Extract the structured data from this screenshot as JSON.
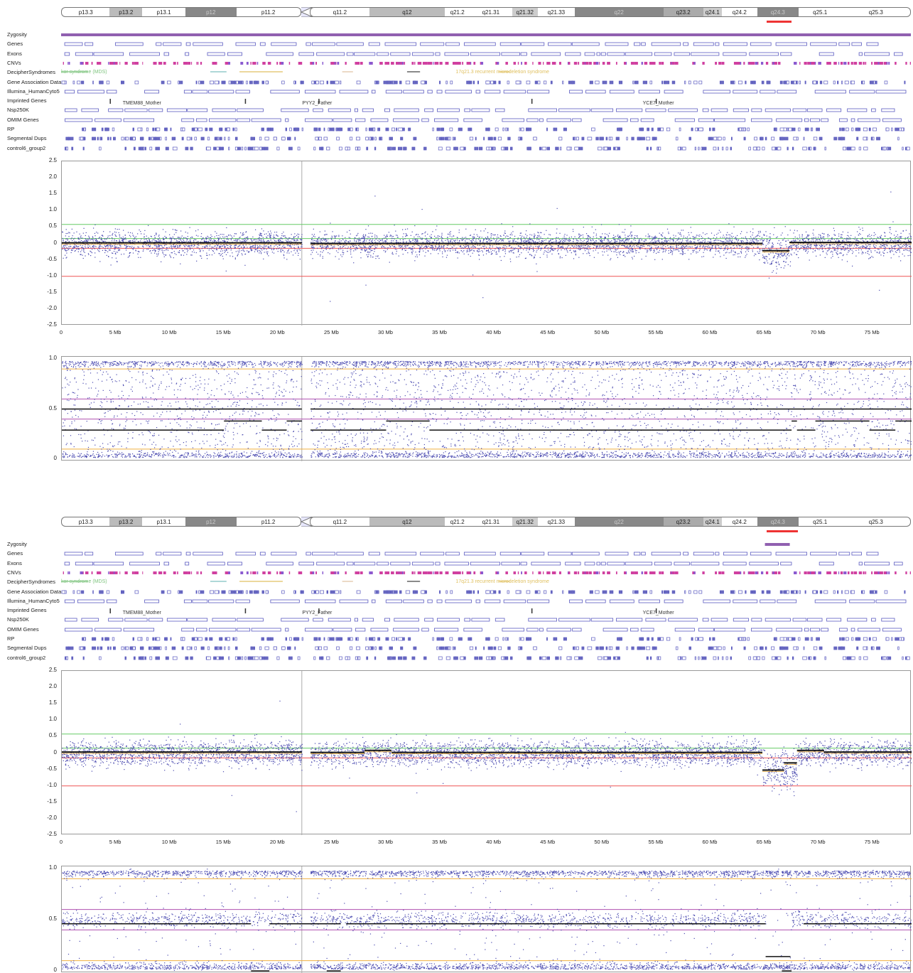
{
  "bands": [
    {
      "label": "p13.3",
      "start": 0,
      "end": 4.5,
      "shade": "#ffffff"
    },
    {
      "label": "p13.2",
      "start": 4.5,
      "end": 7.5,
      "shade": "#bbbbbb"
    },
    {
      "label": "p13.1",
      "start": 7.5,
      "end": 11.5,
      "shade": "#ffffff"
    },
    {
      "label": "p12",
      "start": 11.5,
      "end": 16.2,
      "shade": "#888888"
    },
    {
      "label": "p11.2",
      "start": 16.2,
      "end": 22.2,
      "shade": "#ffffff"
    },
    {
      "label": "q11.2",
      "start": 23.0,
      "end": 28.5,
      "shade": "#ffffff"
    },
    {
      "label": "q12",
      "start": 28.5,
      "end": 35.5,
      "shade": "#bbbbbb"
    },
    {
      "label": "q21.2",
      "start": 35.5,
      "end": 37.8,
      "shade": "#ffffff"
    },
    {
      "label": "q21.31",
      "start": 37.8,
      "end": 41.7,
      "shade": "#ffffff"
    },
    {
      "label": "q21.32",
      "start": 41.7,
      "end": 44.1,
      "shade": "#cccccc"
    },
    {
      "label": "q21.33",
      "start": 44.1,
      "end": 47.5,
      "shade": "#ffffff"
    },
    {
      "label": "q22",
      "start": 47.5,
      "end": 55.7,
      "shade": "#888888"
    },
    {
      "label": "q23.2",
      "start": 55.7,
      "end": 59.4,
      "shade": "#aaaaaa"
    },
    {
      "label": "q24.1",
      "start": 59.4,
      "end": 61.1,
      "shade": "#cccccc"
    },
    {
      "label": "q24.2",
      "start": 61.1,
      "end": 64.4,
      "shade": "#ffffff"
    },
    {
      "label": "q24.3",
      "start": 64.4,
      "end": 68.2,
      "shade": "#888888"
    },
    {
      "label": "q25.1",
      "start": 68.2,
      "end": 72.2,
      "shade": "#ffffff"
    },
    {
      "label": "q25.3",
      "start": 72.2,
      "end": 78.6,
      "shade": "#ffffff"
    }
  ],
  "tracks": [
    "Zygosity",
    "Genes",
    "Exons",
    "CNVs",
    "DecipherSyndromes",
    "Gene Association Data",
    "Illumina_HumanCyto5",
    "Imprinted Genes",
    "Nsp250K",
    "OMIM Genes",
    "RP",
    "Segmental Dups",
    "control6_group2"
  ],
  "annotations": {
    "decipher_1": "kor syndrome (MDS)",
    "decipher_2": "17q21.3 recurrent microdeletion syndrome",
    "imprinted_1": "TMEM88_Mother",
    "imprinted_2": "PYY2_Father",
    "imprinted_3": "YCE7_Mother"
  },
  "chart_data": [
    {
      "type": "scatter",
      "name_hint": "panel-1-log2-ratio",
      "x_ticks": [
        "0",
        "5 Mb",
        "10 Mb",
        "15 Mb",
        "20 Mb",
        "25 Mb",
        "30 Mb",
        "35 Mb",
        "40 Mb",
        "45 Mb",
        "50 Mb",
        "55 Mb",
        "60 Mb",
        "65 Mb",
        "70 Mb",
        "75 Mb"
      ],
      "y_ticks": [
        "2.5",
        "2.0",
        "1.5",
        "1.0",
        "0.5",
        "0",
        "-0.5",
        "-1.0",
        "-1.5",
        "-2.0",
        "-2.5"
      ],
      "xlim": [
        0,
        78.6
      ],
      "ylim": [
        -2.5,
        2.5
      ],
      "thresholds": [
        {
          "y": 0.58,
          "color": "#6c6"
        },
        {
          "y": 0.15,
          "color": "#6c6"
        },
        {
          "y": -0.15,
          "color": "#e55"
        },
        {
          "y": -1.0,
          "color": "#e55"
        }
      ],
      "segments": [
        {
          "x0": 0,
          "x1": 22.2,
          "y": 0.02
        },
        {
          "x0": 23.0,
          "x1": 64.8,
          "y": 0.0
        },
        {
          "x0": 64.8,
          "x1": 67.3,
          "y": -0.22
        },
        {
          "x0": 67.3,
          "x1": 78.6,
          "y": 0.03
        }
      ],
      "deletion_region": [
        64.8,
        67.3
      ],
      "deletion_mean": -0.22
    },
    {
      "type": "scatter",
      "name_hint": "panel-1-b-allele-frequency",
      "y_ticks": [
        "1.0",
        "0.5",
        "0"
      ],
      "xlim": [
        0,
        78.6
      ],
      "ylim": [
        0,
        1
      ],
      "thresholds": [
        {
          "y": 0.9,
          "color": "#f0b040"
        },
        {
          "y": 0.6,
          "color": "#b050b0"
        },
        {
          "y": 0.4,
          "color": "#b050b0"
        },
        {
          "y": 0.1,
          "color": "#f0b040"
        }
      ],
      "segments": [
        {
          "x0": 0,
          "x1": 22.2,
          "y": 0.5
        },
        {
          "x0": 23.0,
          "x1": 78.6,
          "y": 0.5
        },
        {
          "x0": 0,
          "x1": 15,
          "y": 0.29
        },
        {
          "x0": 15,
          "x1": 18.5,
          "y": 0.38
        },
        {
          "x0": 18.5,
          "x1": 20.8,
          "y": 0.29
        },
        {
          "x0": 20.8,
          "x1": 22.2,
          "y": 0.38
        },
        {
          "x0": 23.0,
          "x1": 30,
          "y": 0.29
        },
        {
          "x0": 30,
          "x1": 34,
          "y": 0.38
        },
        {
          "x0": 34,
          "x1": 67.5,
          "y": 0.29
        },
        {
          "x0": 67.5,
          "x1": 68.0,
          "y": 0.38
        },
        {
          "x0": 68.0,
          "x1": 69.7,
          "y": 0.29
        },
        {
          "x0": 69.7,
          "x1": 74.7,
          "y": 0.38
        },
        {
          "x0": 74.7,
          "x1": 77.1,
          "y": 0.29
        },
        {
          "x0": 77.1,
          "x1": 78.6,
          "y": 0.38
        }
      ],
      "deletion_region": [
        64.8,
        67.3
      ]
    },
    {
      "type": "scatter",
      "name_hint": "panel-2-log2-ratio",
      "x_ticks": [
        "0",
        "5 Mb",
        "10 Mb",
        "15 Mb",
        "20 Mb",
        "25 Mb",
        "30 Mb",
        "35 Mb",
        "40 Mb",
        "45 Mb",
        "50 Mb",
        "55 Mb",
        "60 Mb",
        "65 Mb",
        "70 Mb",
        "75 Mb"
      ],
      "y_ticks": [
        "2.5",
        "2.0",
        "1.5",
        "1.0",
        "0.5",
        "0",
        "-0.5",
        "-1.0",
        "-1.5",
        "-2.0",
        "-2.5"
      ],
      "xlim": [
        0,
        78.6
      ],
      "ylim": [
        -2.5,
        2.5
      ],
      "thresholds": [
        {
          "y": 0.58,
          "color": "#6c6"
        },
        {
          "y": 0.15,
          "color": "#6c6"
        },
        {
          "y": -0.15,
          "color": "#e55"
        },
        {
          "y": -1.0,
          "color": "#e55"
        }
      ],
      "segments": [
        {
          "x0": 0,
          "x1": 22.2,
          "y": 0.03
        },
        {
          "x0": 23.0,
          "x1": 28,
          "y": 0.02
        },
        {
          "x0": 28,
          "x1": 30.5,
          "y": 0.08
        },
        {
          "x0": 30.5,
          "x1": 64.8,
          "y": 0.02
        },
        {
          "x0": 64.8,
          "x1": 66.8,
          "y": -0.52
        },
        {
          "x0": 66.8,
          "x1": 68.0,
          "y": -0.3
        },
        {
          "x0": 68.0,
          "x1": 70.5,
          "y": 0.08
        },
        {
          "x0": 70.5,
          "x1": 78.6,
          "y": 0.03
        }
      ],
      "deletion_region": [
        64.8,
        68.0
      ],
      "deletion_mean": -0.52
    },
    {
      "type": "scatter",
      "name_hint": "panel-2-b-allele-frequency",
      "y_ticks": [
        "1.0",
        "0.5",
        "0"
      ],
      "xlim": [
        0,
        78.6
      ],
      "ylim": [
        0,
        1
      ],
      "thresholds": [
        {
          "y": 0.9,
          "color": "#f0b040"
        },
        {
          "y": 0.6,
          "color": "#b050b0"
        },
        {
          "y": 0.4,
          "color": "#b050b0"
        },
        {
          "y": 0.1,
          "color": "#f0b040"
        }
      ],
      "segments": [
        {
          "x0": 0,
          "x1": 17.5,
          "y": 0.46
        },
        {
          "x0": 19.2,
          "x1": 25.8,
          "y": 0.46
        },
        {
          "x0": 26.3,
          "x1": 65.1,
          "y": 0.46
        },
        {
          "x0": 68.6,
          "x1": 78.6,
          "y": 0.46
        },
        {
          "x0": 65.1,
          "x1": 67.4,
          "y": 0.14
        },
        {
          "x0": 17.5,
          "x1": 19.2,
          "y": 0.0
        },
        {
          "x0": 24.5,
          "x1": 25.8,
          "y": 0.0
        },
        {
          "x0": 66.6,
          "x1": 67.5,
          "y": 0.0
        }
      ],
      "deletion_region": [
        65.1,
        67.4
      ],
      "loh": true
    }
  ]
}
